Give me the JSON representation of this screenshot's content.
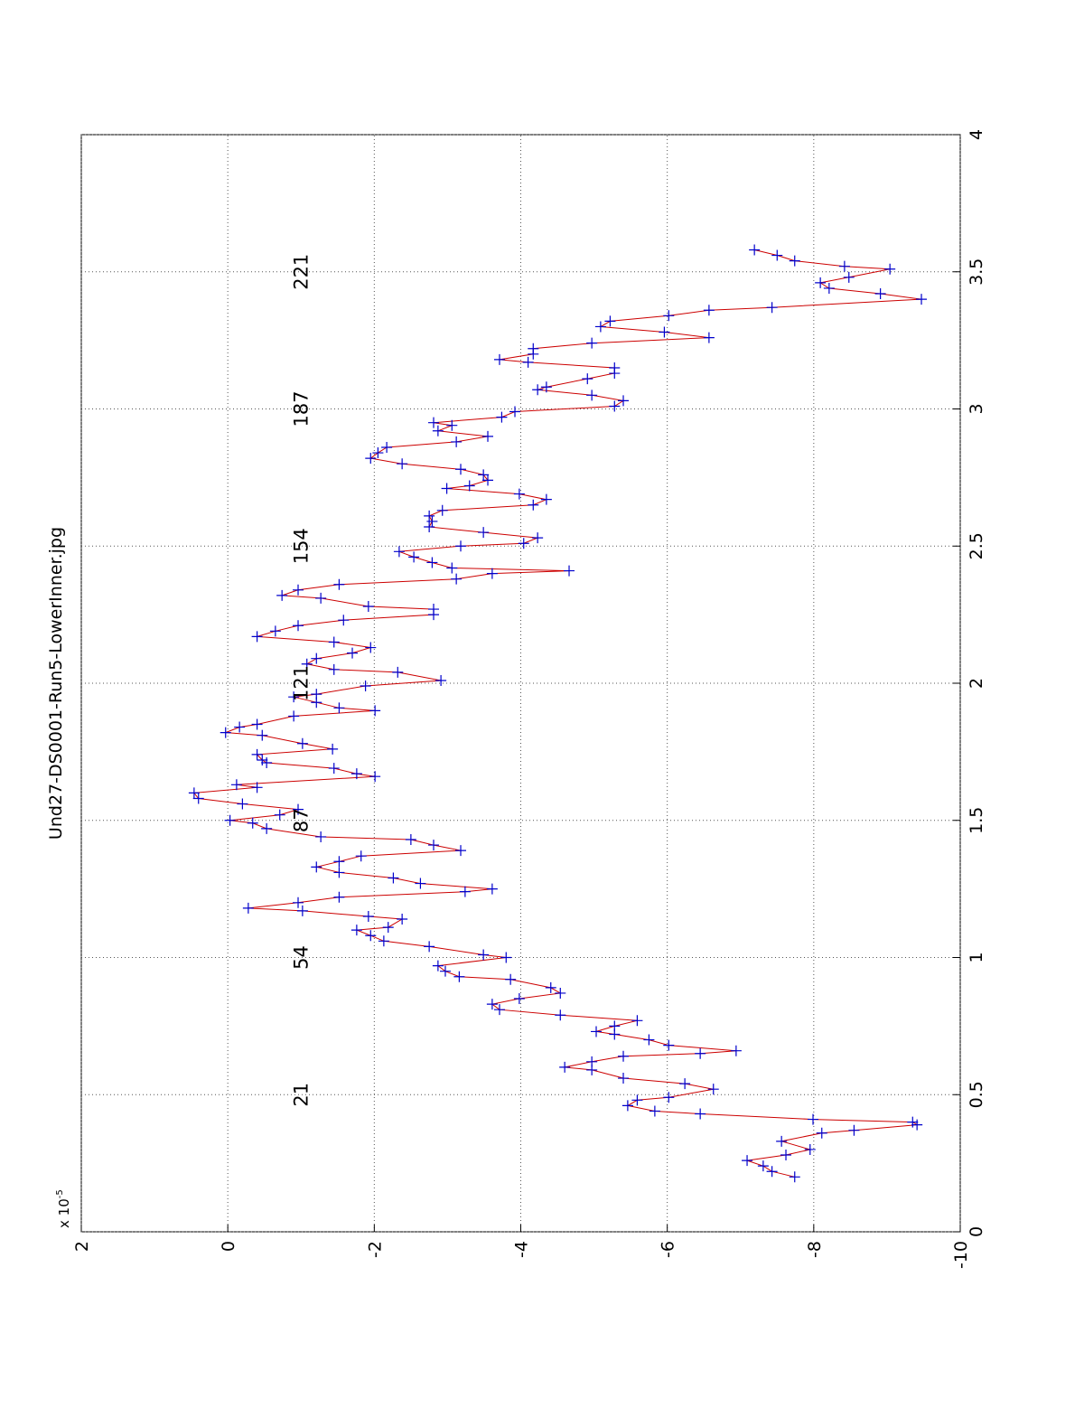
{
  "chart_data": {
    "type": "line",
    "title": "Und27-DS0001-Run5-LowerInner.jpg",
    "multiplier": "x 10",
    "multiplier_exponent": "-5",
    "xlim": [
      0,
      4
    ],
    "xticks": [
      0,
      0.5,
      1,
      1.5,
      2,
      2.5,
      3,
      3.5,
      4
    ],
    "ylim": [
      -10,
      2
    ],
    "yticks": [
      -10,
      -8,
      -6,
      -4,
      -2,
      0,
      2
    ],
    "grid": true,
    "rotated": true,
    "line_color": "#cc0000",
    "marker_color": "#0000cc",
    "marker": "+",
    "annotations": [
      {
        "text": "21",
        "x": 0.5,
        "y": -1
      },
      {
        "text": "54",
        "x": 1,
        "y": -1
      },
      {
        "text": "87",
        "x": 1.5,
        "y": -1
      },
      {
        "text": "121",
        "x": 2,
        "y": -1
      },
      {
        "text": "154",
        "x": 2.5,
        "y": -1
      },
      {
        "text": "187",
        "x": 3,
        "y": -1
      },
      {
        "text": "221",
        "x": 3.5,
        "y": -1
      }
    ],
    "x": [
      0.2,
      0.22,
      0.24,
      0.26,
      0.28,
      0.3,
      0.33,
      0.36,
      0.37,
      0.39,
      0.4,
      0.41,
      0.43,
      0.44,
      0.46,
      0.48,
      0.49,
      0.52,
      0.54,
      0.56,
      0.59,
      0.6,
      0.62,
      0.64,
      0.65,
      0.66,
      0.68,
      0.7,
      0.72,
      0.73,
      0.75,
      0.77,
      0.79,
      0.81,
      0.83,
      0.85,
      0.87,
      0.89,
      0.92,
      0.93,
      0.95,
      0.97,
      1.0,
      1.01,
      1.04,
      1.06,
      1.08,
      1.1,
      1.11,
      1.14,
      1.15,
      1.17,
      1.18,
      1.2,
      1.22,
      1.24,
      1.25,
      1.27,
      1.29,
      1.31,
      1.33,
      1.35,
      1.37,
      1.39,
      1.41,
      1.43,
      1.44,
      1.47,
      1.49,
      1.5,
      1.52,
      1.54,
      1.56,
      1.58,
      1.6,
      1.62,
      1.63,
      1.66,
      1.67,
      1.69,
      1.71,
      1.72,
      1.74,
      1.76,
      1.78,
      1.81,
      1.82,
      1.84,
      1.85,
      1.88,
      1.9,
      1.91,
      1.93,
      1.95,
      1.96,
      1.99,
      2.01,
      2.04,
      2.05,
      2.07,
      2.09,
      2.11,
      2.13,
      2.15,
      2.17,
      2.19,
      2.21,
      2.23,
      2.25,
      2.27,
      2.28,
      2.31,
      2.32,
      2.34,
      2.36,
      2.38,
      2.4,
      2.41,
      2.42,
      2.44,
      2.46,
      2.48,
      2.5,
      2.51,
      2.53,
      2.55,
      2.57,
      2.59,
      2.61,
      2.63,
      2.65,
      2.67,
      2.69,
      2.71,
      2.72,
      2.74,
      2.76,
      2.78,
      2.8,
      2.82,
      2.84,
      2.86,
      2.88,
      2.9,
      2.92,
      2.94,
      2.95,
      2.97,
      2.99,
      3.01,
      3.03,
      3.05,
      3.07,
      3.08,
      3.11,
      3.13,
      3.15,
      3.17,
      3.18,
      3.2,
      3.22,
      3.24,
      3.26,
      3.28,
      3.3,
      3.32,
      3.34,
      3.36,
      3.37,
      3.4,
      3.42,
      3.44,
      3.46,
      3.48,
      3.51,
      3.52,
      3.54,
      3.56,
      3.58
    ],
    "values": [
      -7.74,
      -7.43,
      -7.31,
      -7.09,
      -7.62,
      -7.95,
      -7.56,
      -8.11,
      -8.55,
      -9.41,
      -9.35,
      -7.99,
      -6.45,
      -5.83,
      -5.46,
      -5.59,
      -6.02,
      -6.63,
      -6.24,
      -5.4,
      -4.97,
      -4.6,
      -4.97,
      -5.4,
      -6.45,
      -6.94,
      -6.02,
      -5.75,
      -5.28,
      -5.03,
      -5.28,
      -5.59,
      -4.54,
      -3.71,
      -3.61,
      -3.98,
      -4.54,
      -4.41,
      -3.86,
      -3.16,
      -2.97,
      -2.87,
      -3.8,
      -3.49,
      -2.75,
      -2.13,
      -1.95,
      -1.76,
      -2.19,
      -2.38,
      -1.92,
      -1.02,
      -0.28,
      -0.96,
      -1.52,
      -3.24,
      -3.61,
      -2.63,
      -2.26,
      -1.52,
      -1.21,
      -1.52,
      -1.82,
      -3.18,
      -2.81,
      -2.5,
      -1.27,
      -0.53,
      -0.34,
      -0.03,
      -0.71,
      -0.96,
      -0.2,
      0.4,
      0.46,
      -0.4,
      -0.12,
      -2.01,
      -1.76,
      -1.45,
      -0.53,
      -0.47,
      -0.4,
      -1.43,
      -1.02,
      -0.47,
      0.03,
      -0.16,
      -0.4,
      -0.9,
      -2.01,
      -1.52,
      -1.21,
      -0.9,
      -1.21,
      -1.88,
      -2.91,
      -2.32,
      -1.45,
      -1.08,
      -1.21,
      -1.7,
      -1.95,
      -1.45,
      -0.4,
      -0.65,
      -0.96,
      -1.58,
      -2.81,
      -2.81,
      -1.92,
      -1.27,
      -0.74,
      -0.96,
      -1.52,
      -3.12,
      -3.61,
      -4.66,
      -3.06,
      -2.79,
      -2.54,
      -2.34,
      -3.18,
      -4.04,
      -4.23,
      -3.49,
      -2.75,
      -2.79,
      -2.75,
      -2.93,
      -4.17,
      -4.35,
      -3.98,
      -2.99,
      -3.3,
      -3.55,
      -3.49,
      -3.18,
      -2.38,
      -1.95,
      -2.05,
      -2.17,
      -3.12,
      -3.55,
      -2.87,
      -3.06,
      -2.81,
      -3.74,
      -3.92,
      -5.28,
      -5.4,
      -4.97,
      -4.23,
      -4.35,
      -4.91,
      -5.28,
      -5.28,
      -4.1,
      -3.71,
      -4.17,
      -4.17,
      -4.97,
      -6.57,
      -5.96,
      -5.09,
      -5.22,
      -6.02,
      -6.57,
      -7.43,
      -9.47,
      -8.91,
      -8.21,
      -8.09,
      -8.48,
      -9.04,
      -8.42,
      -7.74,
      -7.5,
      -7.19
    ]
  }
}
